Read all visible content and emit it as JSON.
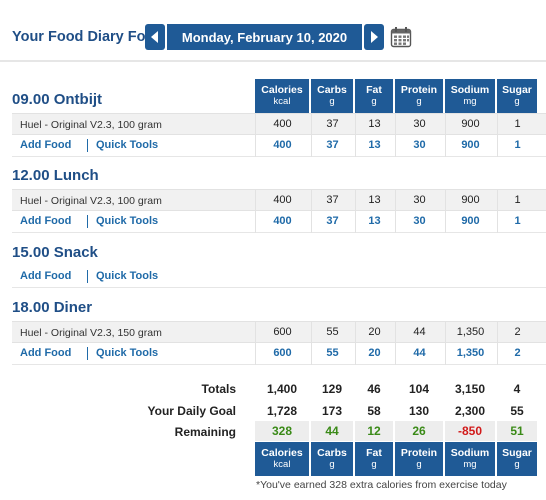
{
  "header": {
    "title": "Your Food Diary For:",
    "date": "Monday, February 10, 2020"
  },
  "columns": [
    {
      "name": "Calories",
      "unit": "kcal"
    },
    {
      "name": "Carbs",
      "unit": "g"
    },
    {
      "name": "Fat",
      "unit": "g"
    },
    {
      "name": "Protein",
      "unit": "g"
    },
    {
      "name": "Sodium",
      "unit": "mg"
    },
    {
      "name": "Sugar",
      "unit": "g"
    }
  ],
  "links": {
    "add_food": "Add Food",
    "quick_tools": "Quick Tools"
  },
  "meals": [
    {
      "title": "09.00 Ontbijt",
      "foods": [
        {
          "name": "Huel - Original V2.3, 100 gram",
          "values": [
            "400",
            "37",
            "13",
            "30",
            "900",
            "1"
          ]
        }
      ],
      "totals": [
        "400",
        "37",
        "13",
        "30",
        "900",
        "1"
      ]
    },
    {
      "title": "12.00 Lunch",
      "foods": [
        {
          "name": "Huel - Original V2.3, 100 gram",
          "values": [
            "400",
            "37",
            "13",
            "30",
            "900",
            "1"
          ]
        }
      ],
      "totals": [
        "400",
        "37",
        "13",
        "30",
        "900",
        "1"
      ]
    },
    {
      "title": "15.00 Snack",
      "foods": [],
      "totals": []
    },
    {
      "title": "18.00 Diner",
      "foods": [
        {
          "name": "Huel - Original V2.3, 150 gram",
          "values": [
            "600",
            "55",
            "20",
            "44",
            "1,350",
            "2"
          ]
        }
      ],
      "totals": [
        "600",
        "55",
        "20",
        "44",
        "1,350",
        "2"
      ]
    }
  ],
  "summary": {
    "totals": {
      "label": "Totals",
      "values": [
        "1,400",
        "129",
        "46",
        "104",
        "3,150",
        "4"
      ]
    },
    "goal": {
      "label": "Your Daily Goal",
      "values": [
        "1,728",
        "173",
        "58",
        "130",
        "2,300",
        "55"
      ]
    },
    "remaining": {
      "label": "Remaining",
      "values": [
        "328",
        "44",
        "12",
        "26",
        "-850",
        "51"
      ]
    }
  },
  "exercise_note": "*You've earned 328 extra calories from exercise today",
  "colors": {
    "brand_blue": "#1f5a96",
    "link_blue": "#1f6aa8",
    "positive_green": "#3a8a17",
    "negative_red": "#d11a1a"
  }
}
